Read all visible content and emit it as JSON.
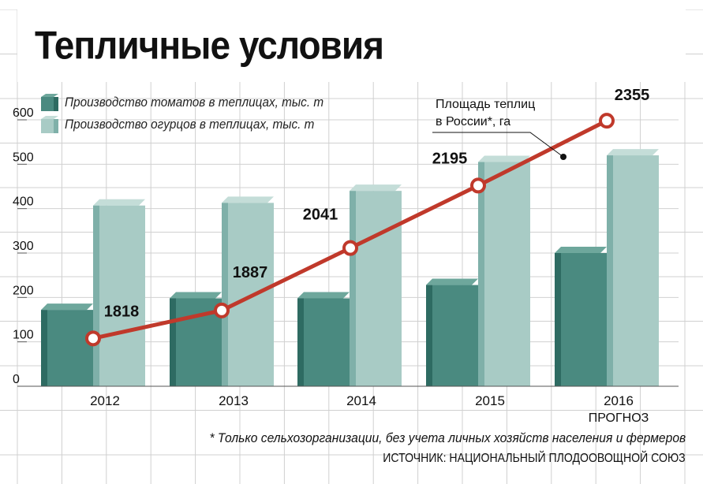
{
  "header": {
    "title": "Тепличные условия"
  },
  "legend": {
    "tomatoes": "Производство томатов в теплицах, тыс. т",
    "cucumbers": "Производство огурцов в теплицах, тыс. т"
  },
  "annotation": {
    "line1": "Площадь теплиц",
    "line2": "в России*, га"
  },
  "footnote": "* Только сельхозорганизации, без учета личных хозяйств населения и фермеров",
  "source": "ИСТОЧНИК: НАЦИОНАЛЬНЫЙ ПЛОДООВОЩНОЙ СОЮЗ",
  "colors": {
    "tomato_front": "#4a8a80",
    "tomato_side": "#2e6b62",
    "tomato_top": "#6ea79c",
    "cucumber_front": "#a8cbc5",
    "cucumber_side": "#7fb0a9",
    "cucumber_top": "#c4ddd8",
    "line": "#c0392b",
    "grid": "#d0d0d0"
  },
  "chart_data": {
    "type": "bar",
    "categories": [
      "2012",
      "2013",
      "2014",
      "2015",
      "2016"
    ],
    "category_sublabels": [
      "",
      "",
      "",
      "",
      "ПРОГНОЗ"
    ],
    "ylim": [
      0,
      600
    ],
    "yticks": [
      0,
      100,
      200,
      300,
      400,
      500,
      600
    ],
    "series": [
      {
        "name": "Производство томатов в теплицах, тыс. т",
        "values": [
          172,
          198,
          198,
          228,
          300
        ]
      },
      {
        "name": "Производство огурцов в теплицах, тыс. т",
        "values": [
          407,
          413,
          440,
          505,
          520
        ]
      }
    ],
    "line_series": {
      "name": "Площадь теплиц в России*, га",
      "values": [
        1818,
        1887,
        2041,
        2195,
        2355
      ],
      "labels": [
        "1818",
        "1887",
        "2041",
        "2195",
        "2355"
      ]
    },
    "grid": true
  }
}
